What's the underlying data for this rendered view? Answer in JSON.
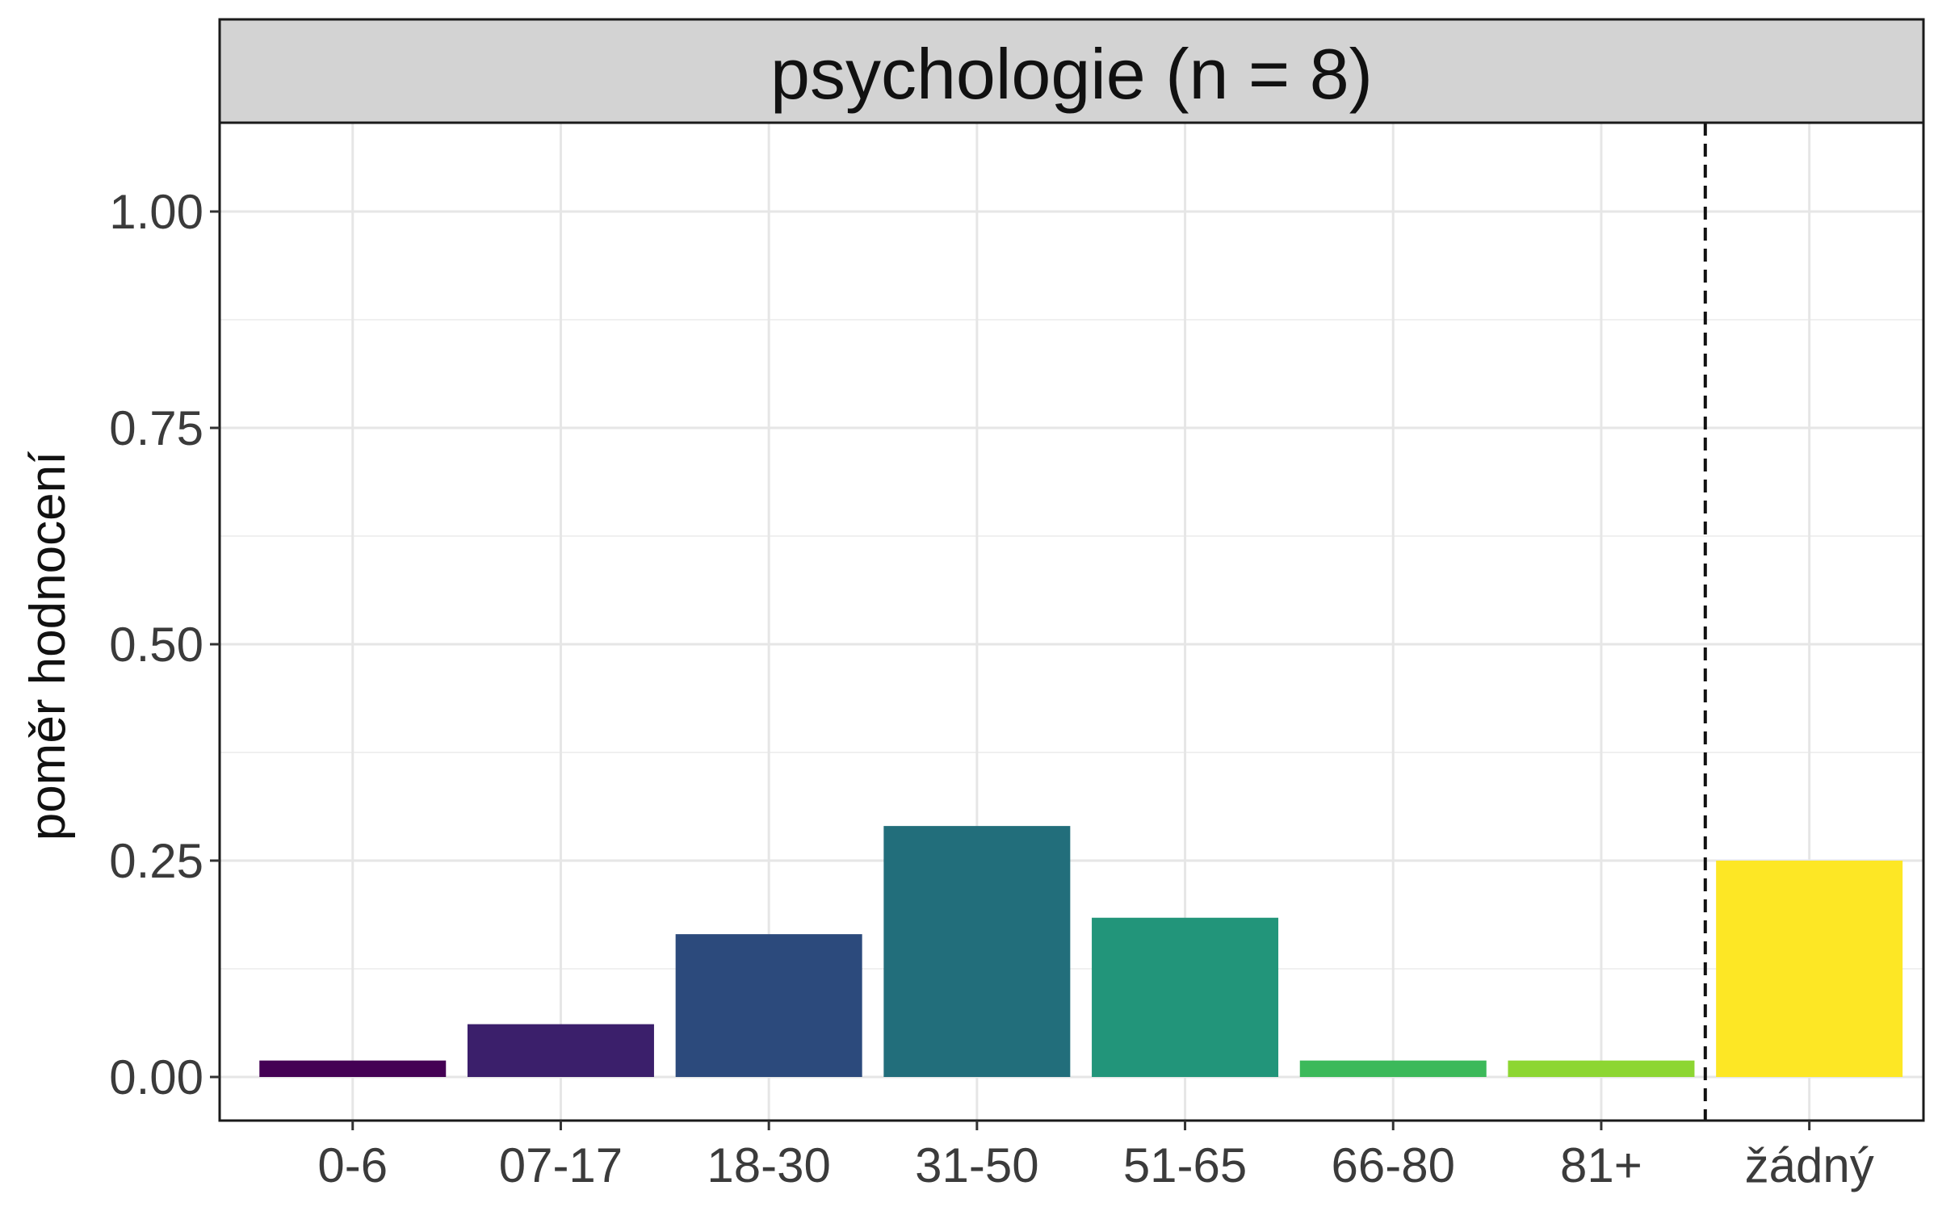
{
  "chart_data": {
    "type": "bar",
    "title": "psychologie (n = 8)",
    "xlabel": "",
    "ylabel": "poměr hodnocení",
    "ylim": [
      0,
      1.1
    ],
    "y_ticks": [
      0.0,
      0.25,
      0.5,
      0.75,
      1.0
    ],
    "y_tick_labels": [
      "0.00",
      "0.25",
      "0.50",
      "0.75",
      "1.00"
    ],
    "categories": [
      "0-6",
      "07-17",
      "18-30",
      "31-50",
      "51-65",
      "66-80",
      "81+",
      "žádný"
    ],
    "values": [
      0.019,
      0.061,
      0.165,
      0.29,
      0.184,
      0.019,
      0.019,
      0.25
    ],
    "colors": [
      "#440154",
      "#3b1f6b",
      "#2c4a7c",
      "#226e7b",
      "#22957a",
      "#3cb95a",
      "#8dd632",
      "#fde725"
    ],
    "separator_after_category": "81+",
    "separator_style": "dashed",
    "grid": true,
    "legend": "none"
  }
}
